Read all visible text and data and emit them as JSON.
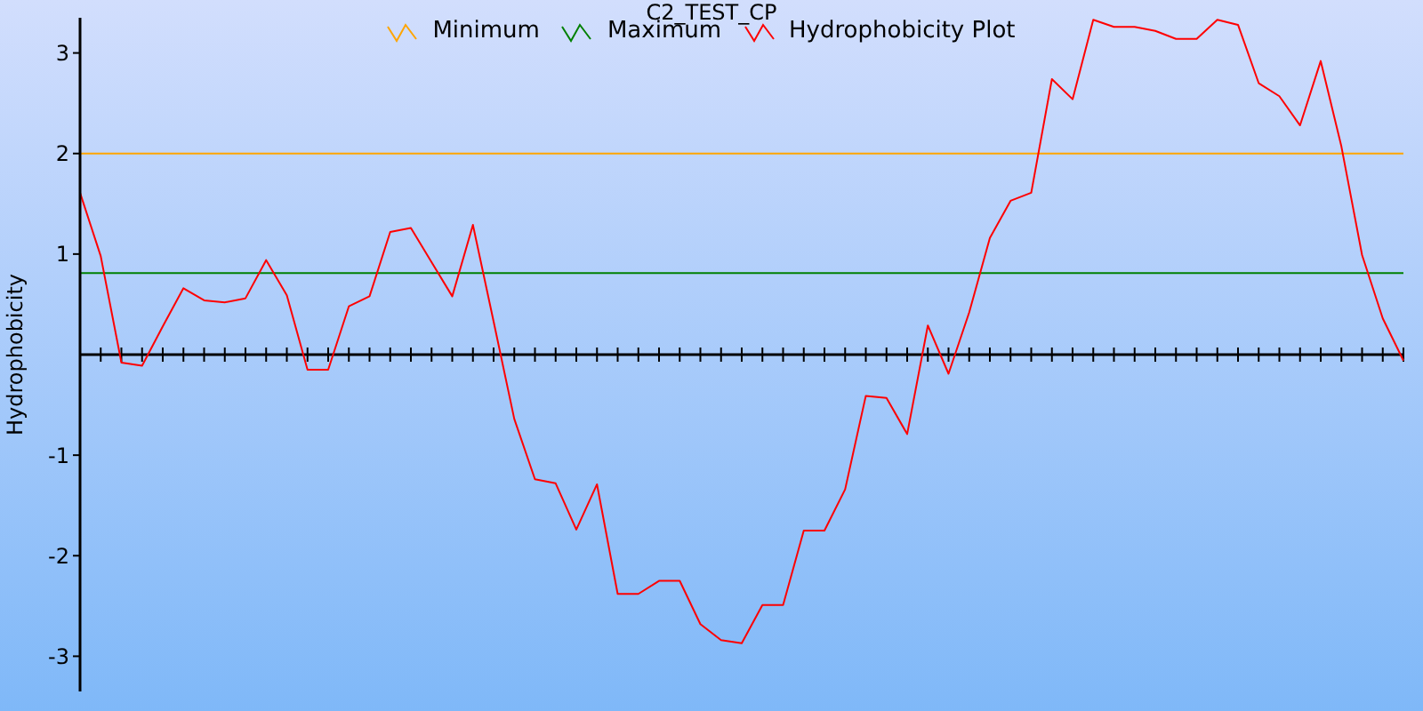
{
  "chart_data": {
    "type": "line",
    "title": "C2_TEST_CP",
    "ylabel": "Hydrophobicity",
    "categories": [
      null,
      null,
      null,
      null,
      null,
      null,
      null,
      null,
      null,
      null,
      null,
      null,
      null,
      null,
      null,
      null,
      null,
      null,
      null,
      null,
      null,
      null,
      null,
      null,
      null,
      null,
      null,
      null,
      null,
      null,
      null,
      null,
      null,
      null,
      null,
      null,
      null,
      null,
      null,
      null,
      null,
      null,
      null,
      null,
      null,
      null,
      null,
      null,
      null,
      null,
      null,
      null,
      null,
      null,
      null,
      null,
      null,
      null,
      null,
      null,
      null,
      null,
      null,
      null,
      null
    ],
    "series": [
      {
        "name": "Minimum",
        "color": "#ffa500",
        "values": [
          2,
          2,
          2,
          2,
          2,
          2,
          2,
          2,
          2,
          2,
          2,
          2,
          2,
          2,
          2,
          2,
          2,
          2,
          2,
          2,
          2,
          2,
          2,
          2,
          2,
          2,
          2,
          2,
          2,
          2,
          2,
          2,
          2,
          2,
          2,
          2,
          2,
          2,
          2,
          2,
          2,
          2,
          2,
          2,
          2,
          2,
          2,
          2,
          2,
          2,
          2,
          2,
          2,
          2,
          2,
          2,
          2,
          2,
          2,
          2,
          2,
          2,
          2,
          2,
          2
        ]
      },
      {
        "name": "Maximum",
        "color": "#008000",
        "values": [
          0.81,
          0.81,
          0.81,
          0.81,
          0.81,
          0.81,
          0.81,
          0.81,
          0.81,
          0.81,
          0.81,
          0.81,
          0.81,
          0.81,
          0.81,
          0.81,
          0.81,
          0.81,
          0.81,
          0.81,
          0.81,
          0.81,
          0.81,
          0.81,
          0.81,
          0.81,
          0.81,
          0.81,
          0.81,
          0.81,
          0.81,
          0.81,
          0.81,
          0.81,
          0.81,
          0.81,
          0.81,
          0.81,
          0.81,
          0.81,
          0.81,
          0.81,
          0.81,
          0.81,
          0.81,
          0.81,
          0.81,
          0.81,
          0.81,
          0.81,
          0.81,
          0.81,
          0.81,
          0.81,
          0.81,
          0.81,
          0.81,
          0.81,
          0.81,
          0.81,
          0.81,
          0.81,
          0.81,
          0.81,
          0.81
        ]
      },
      {
        "name": "Hydrophobicity Plot",
        "color": "#ff0000",
        "values": [
          1.61,
          0.98,
          -0.08,
          -0.11,
          0.28,
          0.66,
          0.54,
          0.52,
          0.56,
          0.94,
          0.59,
          -0.15,
          -0.15,
          0.48,
          0.58,
          1.22,
          1.26,
          0.92,
          0.58,
          1.29,
          0.33,
          -0.64,
          -1.24,
          -1.28,
          -1.74,
          -1.29,
          -2.38,
          -2.38,
          -2.25,
          -2.25,
          -2.68,
          -2.84,
          -2.87,
          -2.49,
          -2.49,
          -1.75,
          -1.75,
          -1.34,
          -0.41,
          -0.43,
          -0.79,
          0.29,
          -0.19,
          0.42,
          1.16,
          1.53,
          1.61,
          2.74,
          2.54,
          3.33,
          3.26,
          3.26,
          3.22,
          3.14,
          3.14,
          3.33,
          3.28,
          2.7,
          2.57,
          2.28,
          2.92,
          2.07,
          0.99,
          0.36,
          -0.06
        ]
      }
    ],
    "ylim": [
      -3.35,
      3.35
    ],
    "yticks": [
      -3,
      -2,
      -1,
      1,
      2,
      3
    ],
    "legend": "top",
    "tick_labels": "y"
  }
}
